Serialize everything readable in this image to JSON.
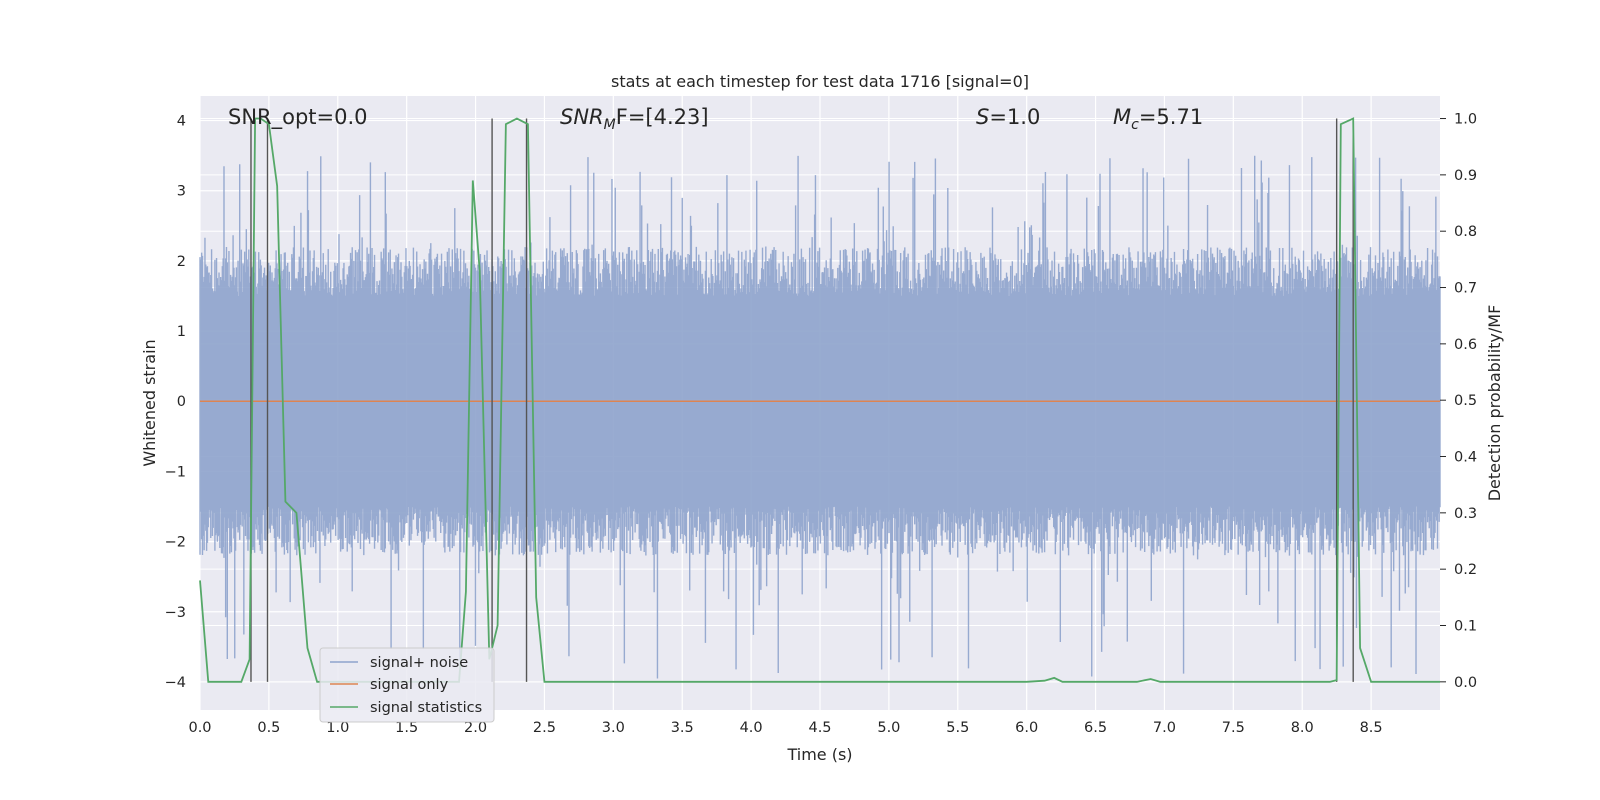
{
  "chart_data": {
    "type": "line",
    "title": "stats at each timestep for test data 1716 [signal=0]",
    "xlabel": "Time (s)",
    "ylabel": "Whitened strain",
    "ylabel_right": "Detection probability/MF",
    "xlim": [
      0.0,
      9.0
    ],
    "ylim": [
      -4.4,
      4.35
    ],
    "ylim_right": [
      -0.05,
      1.04
    ],
    "x_ticks": [
      "0.0",
      "0.5",
      "1.0",
      "1.5",
      "2.0",
      "2.5",
      "3.0",
      "3.5",
      "4.0",
      "4.5",
      "5.0",
      "5.5",
      "6.0",
      "6.5",
      "7.0",
      "7.5",
      "8.0",
      "8.5"
    ],
    "y_ticks": [
      "4",
      "3",
      "2",
      "1",
      "0",
      "−1",
      "−2",
      "−3",
      "−4"
    ],
    "y_ticks_right": [
      "1.0",
      "0.9",
      "0.8",
      "0.7",
      "0.6",
      "0.5",
      "0.4",
      "0.3",
      "0.2",
      "0.1",
      "0.0"
    ],
    "grid": true,
    "legend_position": "lower-left",
    "annotations": {
      "snr_opt": "SNR_opt=0.0",
      "snr_mf_base": "SNR",
      "snr_mf_sub": "M",
      "snr_mf_rest": "F=[4.23]",
      "s_base": "S",
      "s_rest": "=1.0",
      "mc_base": "M",
      "mc_sub": "c",
      "mc_rest": "=5.71"
    },
    "vertical_markers": [
      0.37,
      0.49,
      2.12,
      2.37,
      8.25,
      8.37
    ],
    "series": [
      {
        "name": "signal+ noise",
        "color": "#8ea3cc",
        "description_kind": "dense noise trace",
        "amplitude_envelope": {
          "typical_max": 2.2,
          "typical_min": -2.2,
          "peak_max": 3.5,
          "peak_min": -4.0
        }
      },
      {
        "name": "signal only",
        "color": "#dd8452",
        "x": [
          0.0,
          9.0
        ],
        "y": [
          0.0,
          0.0
        ]
      },
      {
        "name": "signal statistics",
        "color": "#55a868",
        "axis": "right",
        "x": [
          0.0,
          0.06,
          0.12,
          0.2,
          0.3,
          0.36,
          0.4,
          0.44,
          0.5,
          0.56,
          0.62,
          0.7,
          0.78,
          0.85,
          1.0,
          1.5,
          1.8,
          1.88,
          1.93,
          1.98,
          2.03,
          2.1,
          2.16,
          2.22,
          2.3,
          2.38,
          2.44,
          2.5,
          3.0,
          4.0,
          5.0,
          6.0,
          6.13,
          6.2,
          6.26,
          6.4,
          6.8,
          6.9,
          6.97,
          7.5,
          8.0,
          8.2,
          8.25,
          8.28,
          8.37,
          8.42,
          8.5,
          8.6,
          9.0
        ],
        "y": [
          0.18,
          0.0,
          0.0,
          0.0,
          0.0,
          0.04,
          1.0,
          1.0,
          0.99,
          0.88,
          0.32,
          0.3,
          0.06,
          0.0,
          0.0,
          0.0,
          0.0,
          0.0,
          0.16,
          0.89,
          0.73,
          0.04,
          0.1,
          0.99,
          1.0,
          0.99,
          0.15,
          0.0,
          0.0,
          0.0,
          0.0,
          0.0,
          0.002,
          0.007,
          0.0,
          0.0,
          0.0,
          0.005,
          0.0,
          0.0,
          0.0,
          0.0,
          0.003,
          0.99,
          1.0,
          0.06,
          0.0,
          0.0,
          0.0
        ]
      }
    ]
  },
  "legend": {
    "items": [
      {
        "label": "signal+ noise",
        "color": "#8ea3cc"
      },
      {
        "label": "signal only",
        "color": "#dd8452"
      },
      {
        "label": "signal statistics",
        "color": "#55a868"
      }
    ]
  }
}
